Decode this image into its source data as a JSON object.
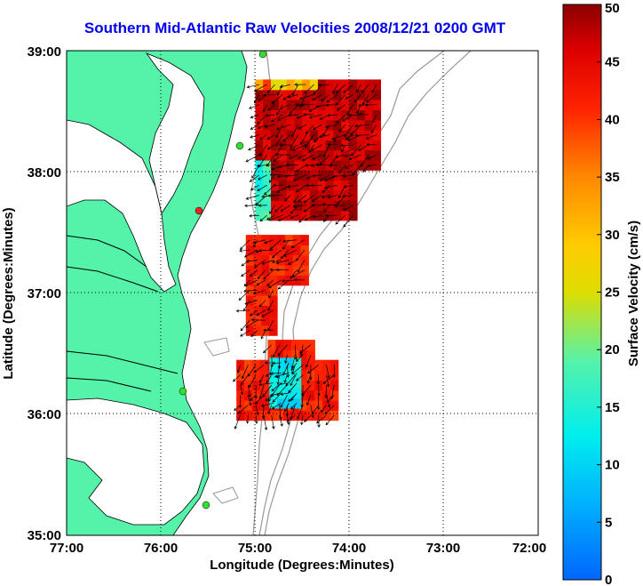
{
  "title": "Southern Mid-Atlantic Raw Velocities 2008/12/21 0200 GMT",
  "axes": {
    "xlabel": "Longitude (Degrees:Minutes)",
    "ylabel": "Latitude (Degrees:Minutes)",
    "x_ticks": [
      "77:00",
      "76:00",
      "75:00",
      "74:00",
      "73:00",
      "72:00"
    ],
    "y_ticks": [
      "39:00",
      "38:00",
      "37:00",
      "36:00",
      "35:00"
    ]
  },
  "colorbar": {
    "label": "Surface Velocity (cm/s)",
    "ticks": [
      "50",
      "45",
      "40",
      "35",
      "30",
      "25",
      "20",
      "15",
      "10",
      "5",
      "0"
    ],
    "range": [
      0,
      50
    ]
  },
  "colors": {
    "land": "#55f2aa",
    "water": "#ffffff",
    "bathymetry": "#999999",
    "title": "#0000ee"
  },
  "chart_data": {
    "type": "heatmap",
    "title": "Southern Mid-Atlantic Raw Velocities 2008/12/21 0200 GMT",
    "xlabel": "Longitude (Degrees:Minutes)",
    "ylabel": "Latitude (Degrees:Minutes)",
    "xlim": [
      -77.0,
      -72.0
    ],
    "ylim": [
      35.0,
      39.0
    ],
    "clim": [
      0,
      50
    ],
    "grid": true,
    "regions": [
      {
        "lon": [
          -75.0,
          -73.75
        ],
        "lat": [
          37.6,
          38.75
        ],
        "dominant_speed_cm_s": 50
      },
      {
        "lon": [
          -75.1,
          -74.5
        ],
        "lat": [
          36.65,
          37.45
        ],
        "dominant_speed_cm_s": 45
      },
      {
        "lon": [
          -75.2,
          -74.2
        ],
        "lat": [
          35.95,
          36.6
        ],
        "dominant_speed_cm_s": 45
      },
      {
        "lon": [
          -74.85,
          -74.6
        ],
        "lat": [
          36.05,
          36.4
        ],
        "dominant_speed_cm_s": 15
      }
    ]
  }
}
